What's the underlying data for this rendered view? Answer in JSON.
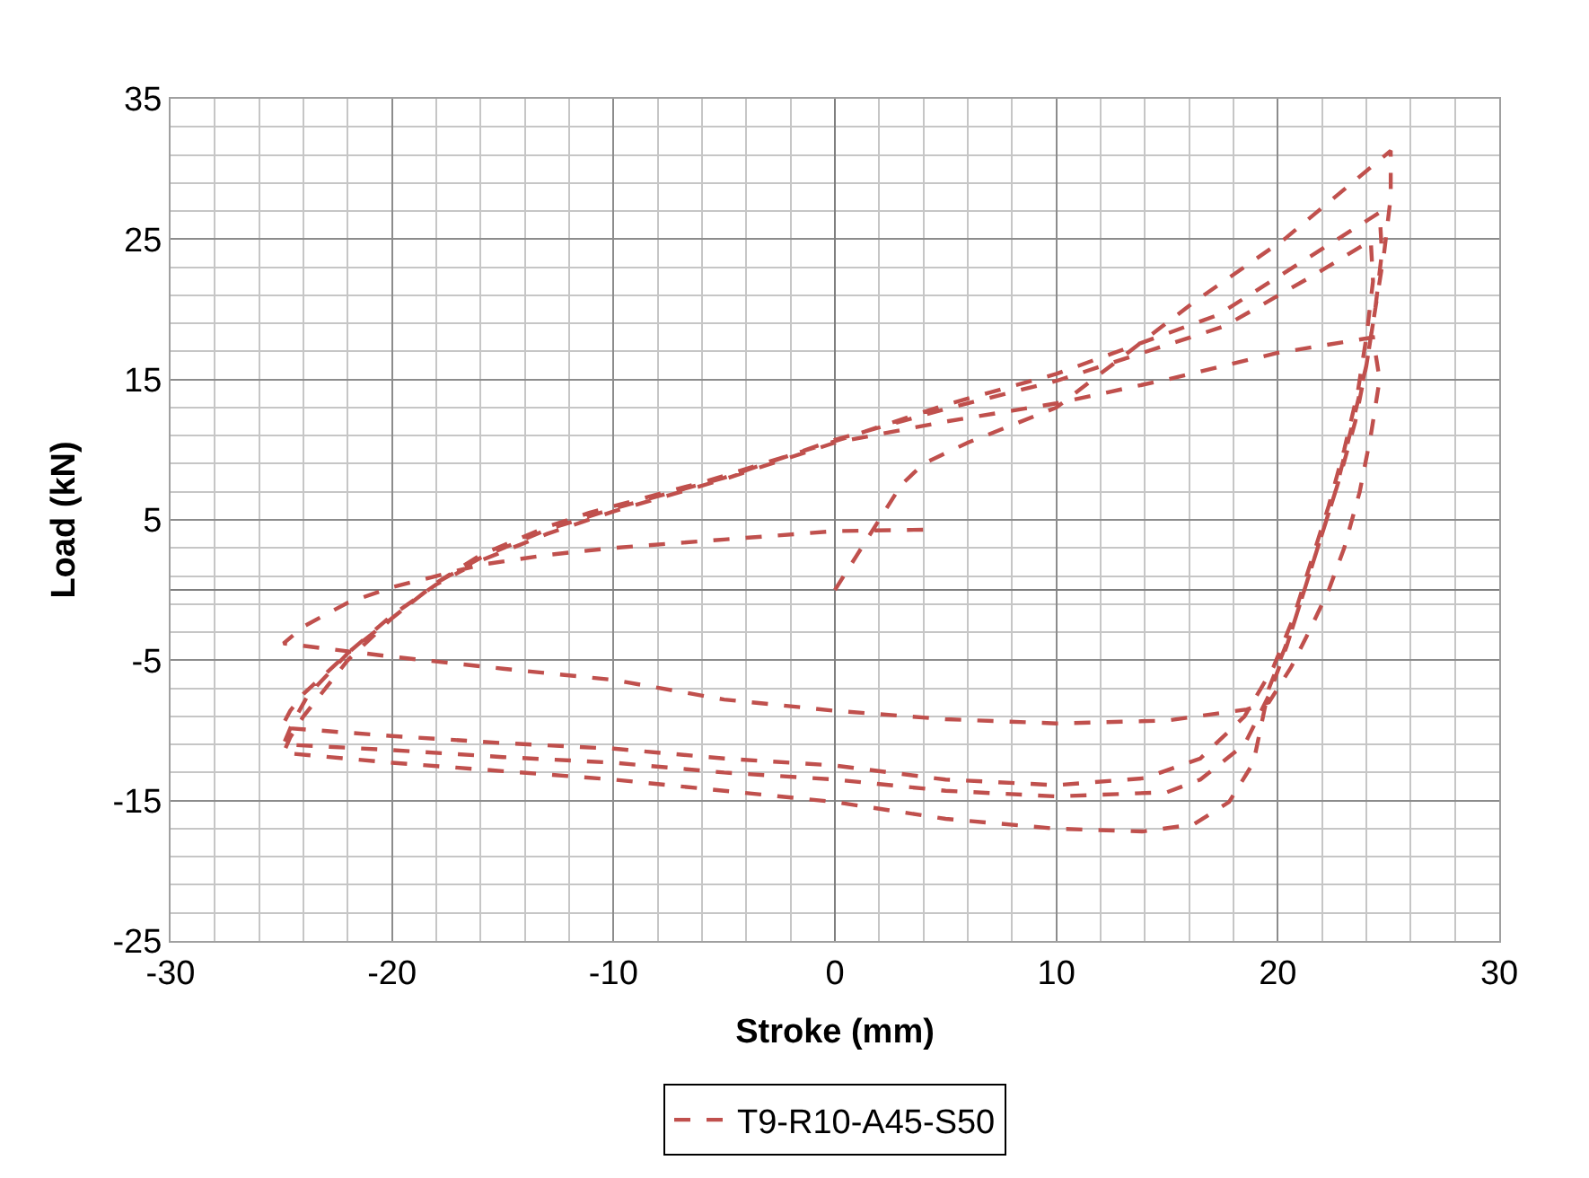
{
  "chart_data": {
    "type": "line",
    "xlabel": "Stroke (mm)",
    "ylabel": "Load (kN)",
    "xlim": [
      -30,
      30
    ],
    "xticks": [
      -30,
      -20,
      -10,
      0,
      10,
      20,
      30
    ],
    "ylim": [
      -25,
      35
    ],
    "yticks": [
      -25,
      -15,
      -5,
      5,
      15,
      25,
      35
    ],
    "grid": true,
    "legend": "bottom",
    "line_style": "dashed",
    "marker": "none",
    "series": [
      {
        "name": "T9-R10-A45-S50",
        "color": "#c0504d",
        "x": [
          0,
          1,
          2,
          3,
          4,
          6,
          10,
          16.2,
          20.3,
          25.1,
          25.1,
          24.8,
          24.4,
          24,
          23.4,
          22.6,
          21.6,
          20.6,
          19.6,
          18.9,
          17.8,
          16.2,
          13.9,
          10,
          5,
          0,
          -5,
          -10,
          -15,
          -20,
          -24.9,
          -24.6,
          -24,
          -22,
          -20,
          -18,
          -16,
          -13,
          -11.1,
          -5.7,
          0.8,
          5,
          10,
          17.3,
          21.1,
          24.6,
          24.7,
          24.4,
          24,
          23.5,
          22.8,
          22,
          21.2,
          20.4,
          19.6,
          18.5,
          16.5,
          15,
          10,
          5,
          0,
          -5,
          -10,
          -15,
          -20,
          -24.9,
          -24.5,
          -23.8,
          -22,
          -20,
          -18,
          -16,
          -13,
          -10,
          -5,
          0,
          5,
          10,
          17.6,
          21.7,
          24.2,
          24.3,
          24,
          23.6,
          23,
          22.3,
          21.5,
          20.7,
          19.8,
          18.5,
          16.5,
          14,
          10,
          5,
          0,
          -5,
          -10,
          -15,
          -20,
          -25,
          -24.6,
          -24,
          -22,
          -20,
          -18,
          -16,
          -13,
          -10,
          -5,
          0,
          5,
          10,
          15,
          20,
          24.3,
          24.6,
          24.2,
          23.7,
          23,
          22.3,
          21.4,
          20.6,
          19.6,
          18.6,
          15,
          10,
          5,
          0,
          -5,
          -10,
          -15,
          -20,
          -24.9,
          -24,
          -22,
          -20,
          -18,
          -16,
          -13,
          -10,
          -5,
          0,
          4
        ],
        "values": [
          0,
          2.5,
          5,
          7.5,
          9,
          10.5,
          13,
          20.5,
          25,
          31.3,
          28,
          24,
          20,
          16,
          12,
          7,
          2,
          -3,
          -7,
          -12.3,
          -15.1,
          -16.7,
          -17.2,
          -17,
          -16.3,
          -15.1,
          -14.3,
          -13.5,
          -12.9,
          -12.3,
          -11.6,
          -10.5,
          -9,
          -5,
          -2,
          0.5,
          2.5,
          4.5,
          5.5,
          7.8,
          11,
          13.2,
          15.4,
          19.6,
          23.4,
          26.9,
          24,
          20,
          16,
          12,
          8,
          4,
          0,
          -4,
          -7.5,
          -11,
          -13.5,
          -14.4,
          -14.7,
          -14.3,
          -13.5,
          -13,
          -12.3,
          -11.9,
          -11.4,
          -11,
          -9.5,
          -7.5,
          -4.5,
          -2,
          0.5,
          2.3,
          4.3,
          5.8,
          8,
          10.7,
          12.9,
          14.9,
          18.8,
          22.5,
          24.9,
          22,
          18,
          14,
          10,
          6,
          2,
          -2,
          -5.5,
          -9,
          -12,
          -13.4,
          -13.9,
          -13.5,
          -12.5,
          -12,
          -11.3,
          -10.9,
          -10.4,
          -9.8,
          -8.6,
          -7.4,
          -4.5,
          -1.8,
          0.4,
          2.1,
          4,
          5.6,
          7.9,
          10.5,
          12,
          13.3,
          15,
          16.9,
          18,
          15,
          11,
          7,
          3,
          0,
          -3,
          -5.5,
          -8,
          -8.5,
          -9.3,
          -9.5,
          -9.2,
          -8.6,
          -7.8,
          -6.4,
          -5.6,
          -4.75,
          -3.8,
          -2.6,
          -0.9,
          0.2,
          1,
          1.8,
          2.5,
          3,
          3.6,
          4.2,
          4.3
        ]
      }
    ]
  }
}
